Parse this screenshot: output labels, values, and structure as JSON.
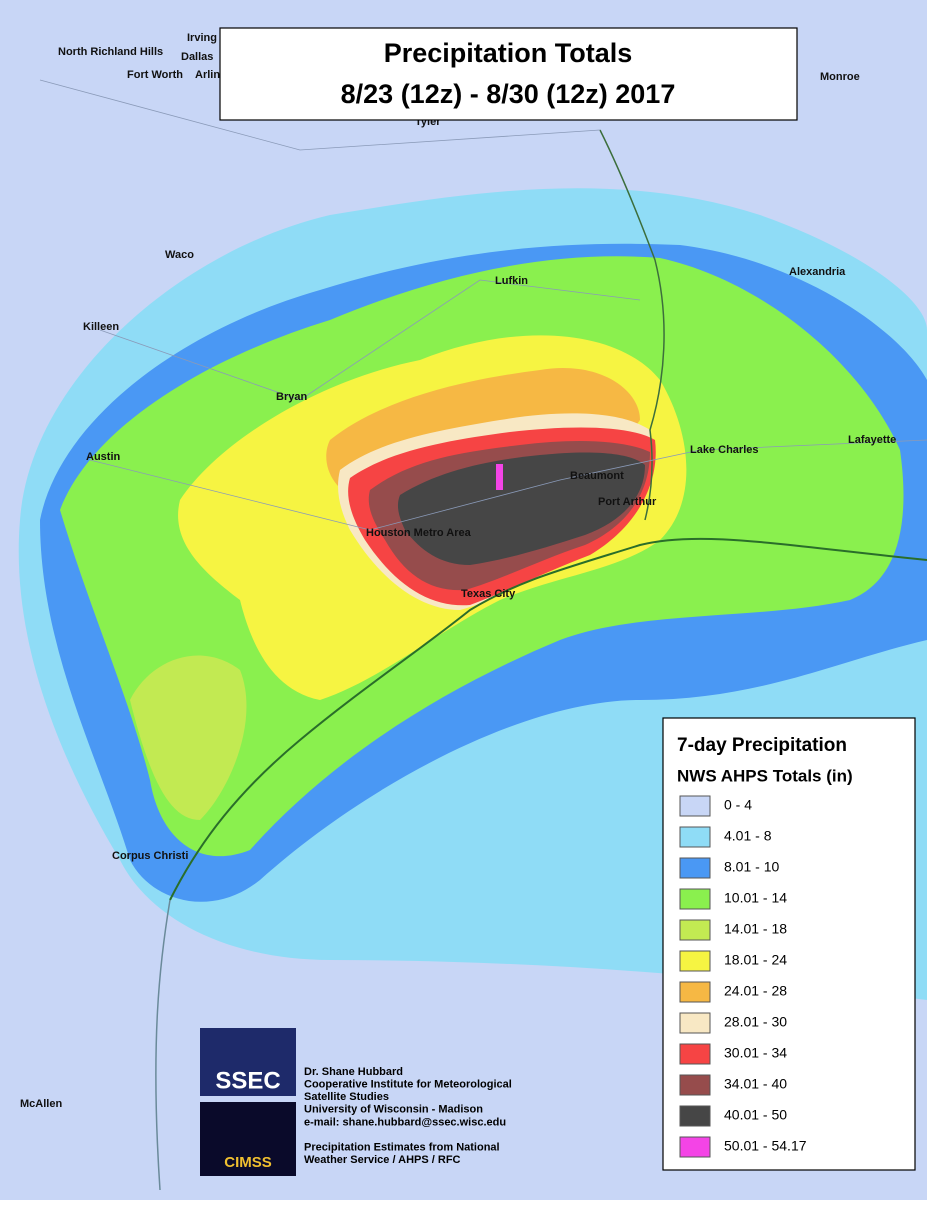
{
  "title": {
    "line1": "Precipitation Totals",
    "line2": "8/23 (12z) - 8/30 (12z) 2017"
  },
  "cities": [
    "North Richland Hills",
    "Irving",
    "Dallas",
    "Fort Worth",
    "Arlin",
    "Tyler",
    "Monroe",
    "Waco",
    "Lufkin",
    "Alexandria",
    "Killeen",
    "Bryan",
    "Lake Charles",
    "Lafayette",
    "Austin",
    "Beaumont",
    "Port Arthur",
    "Houston Metro Area",
    "Texas City",
    "Corpus Christi",
    "McAllen"
  ],
  "legend": {
    "title": "7-day Precipitation",
    "subtitle": "NWS AHPS Totals (in)",
    "items": [
      {
        "label": "0 - 4",
        "color": "#c8d6f6"
      },
      {
        "label": "4.01 - 8",
        "color": "#8fdcf6"
      },
      {
        "label": "8.01 - 10",
        "color": "#4a98f4"
      },
      {
        "label": "10.01 - 14",
        "color": "#8af04e"
      },
      {
        "label": "14.01 - 18",
        "color": "#c2ea52"
      },
      {
        "label": "18.01 - 24",
        "color": "#f6f442"
      },
      {
        "label": "24.01 - 28",
        "color": "#f6b844"
      },
      {
        "label": "28.01 - 30",
        "color": "#f8e8c4"
      },
      {
        "label": "30.01 - 34",
        "color": "#f64444"
      },
      {
        "label": "34.01 - 40",
        "color": "#964c4c"
      },
      {
        "label": "40.01 - 50",
        "color": "#464646"
      },
      {
        "label": "50.01 - 54.17",
        "color": "#f444e6"
      }
    ]
  },
  "credits": {
    "ssec_logo": "SSEC",
    "cimss_logo": "CIMSS",
    "lines": [
      "Dr. Shane Hubbard",
      "Cooperative Institute for Meteorological",
      "Satellite Studies",
      "University of Wisconsin - Madison",
      "e-mail: shane.hubbard@ssec.wisc.edu",
      "",
      "Precipitation Estimates from National",
      "Weather Service / AHPS / RFC"
    ]
  }
}
